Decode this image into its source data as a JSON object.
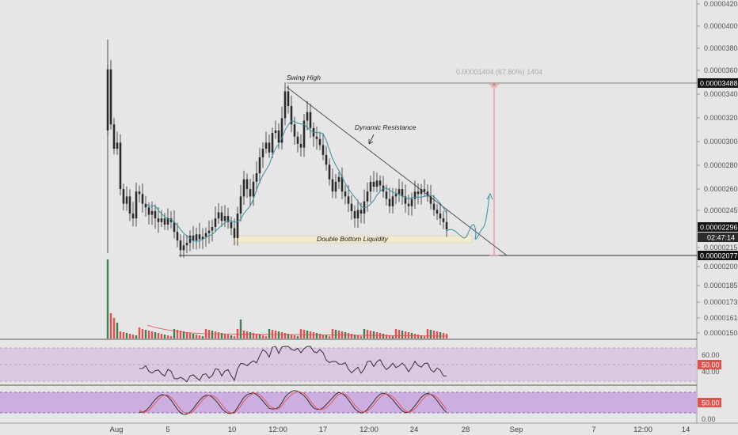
{
  "chart_data": {
    "type": "candlestick",
    "price_axis": {
      "ticks": [
        "0.00004200",
        "0.00004000",
        "0.00003800",
        "0.00003600",
        "0.00003400",
        "0.00003200",
        "0.00003000",
        "0.00002800",
        "0.00002600",
        "0.00002450",
        "0.00002150",
        "0.00002000",
        "0.00001850",
        "0.00001730",
        "0.00001610",
        "0.00001500"
      ],
      "current_price": "0.00002296",
      "countdown": "02:47:14",
      "swing_high_price": "0.00003488",
      "double_bottom_price": "0.00002077"
    },
    "time_axis": {
      "ticks": [
        "Aug",
        "5",
        "10",
        "12:00",
        "17",
        "12:00",
        "24",
        "28",
        "Sep",
        "7",
        "12:00",
        "14"
      ]
    },
    "annotations": {
      "swing_high": "Swing High",
      "dynamic_resistance": "Dynamic Resistance",
      "double_bottom": "Double Bottom Liquidity",
      "measure": "0.00001404 (67.80%) 1404"
    },
    "rsi": {
      "ticks": [
        "60.00",
        "40.00"
      ],
      "value_tag": "50.00"
    },
    "stoch": {
      "value_tag": "50.00",
      "ticks": [
        "0.00"
      ]
    },
    "colors": {
      "up": "#2b2b2b",
      "down": "#2b2b2b",
      "ma": "#3a8fa0",
      "volume_up": "#3f7d52",
      "volume_down": "#e0514f",
      "rsi_band": "#d7c3df",
      "measure": "#e06a6a",
      "zone": "#f3ead0"
    }
  }
}
